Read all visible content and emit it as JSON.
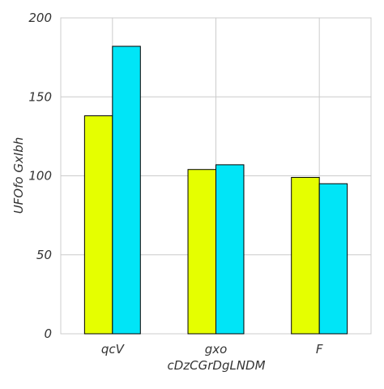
{
  "chart_data": {
    "type": "bar",
    "categories": [
      "qcV",
      "gxo",
      "F"
    ],
    "series": [
      {
        "values": [
          138,
          104,
          99
        ],
        "color": "#e5ff00"
      },
      {
        "values": [
          182,
          107,
          95
        ],
        "color": "#00e5f7"
      }
    ],
    "xlabel": "cDzCGrDgLNDM",
    "ylabel": "UFOfo GxIbh",
    "ylim": [
      0,
      200
    ],
    "yticks": [
      0,
      50,
      100,
      150,
      200
    ],
    "grid": true
  }
}
